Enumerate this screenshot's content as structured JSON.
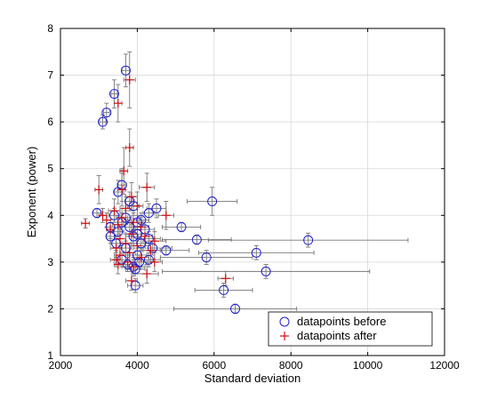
{
  "chart_data": {
    "type": "scatter",
    "xlabel": "Standard deviation",
    "ylabel": "Exponent (power)",
    "xlim": [
      2000,
      12000
    ],
    "ylim": [
      1,
      8
    ],
    "xticks": [
      "2000",
      "4000",
      "6000",
      "8000",
      "10000",
      "12000"
    ],
    "yticks": [
      "1",
      "2",
      "3",
      "4",
      "5",
      "6",
      "7",
      "8"
    ],
    "grid": true,
    "legend_position": "bottom-right",
    "colors": {
      "before": "#1f1fd0",
      "after": "#d01010",
      "errorbar": "#777777",
      "grid": "#d8d8d8"
    },
    "series": [
      {
        "name": "datapoints before",
        "marker": "circle",
        "points": [
          [
            3700,
            7.1,
            100,
            0.35
          ],
          [
            3400,
            6.6,
            80,
            0.3
          ],
          [
            3200,
            6.2,
            80,
            0.2
          ],
          [
            3100,
            6.0,
            80,
            0.15
          ],
          [
            3600,
            4.65,
            120,
            0.35
          ],
          [
            3500,
            4.5,
            100,
            0.25
          ],
          [
            3800,
            4.3,
            120,
            0.2
          ],
          [
            5950,
            4.3,
            650,
            0.3
          ],
          [
            4500,
            4.15,
            250,
            0.2
          ],
          [
            3900,
            4.2,
            150,
            0.2
          ],
          [
            4300,
            4.05,
            150,
            0.2
          ],
          [
            2950,
            4.05,
            100,
            0.1
          ],
          [
            3400,
            4.0,
            150,
            0.15
          ],
          [
            3700,
            3.95,
            150,
            0.15
          ],
          [
            4100,
            3.9,
            200,
            0.15
          ],
          [
            3600,
            3.85,
            100,
            0.2
          ],
          [
            4000,
            3.85,
            150,
            0.15
          ],
          [
            5150,
            3.75,
            500,
            0.1
          ],
          [
            3300,
            3.75,
            100,
            0.1
          ],
          [
            3800,
            3.75,
            200,
            0.15
          ],
          [
            4200,
            3.7,
            250,
            0.15
          ],
          [
            3500,
            3.65,
            150,
            0.15
          ],
          [
            4000,
            3.6,
            200,
            0.15
          ],
          [
            3300,
            3.55,
            100,
            0.15
          ],
          [
            3900,
            3.55,
            200,
            0.15
          ],
          [
            4300,
            3.5,
            300,
            0.15
          ],
          [
            5550,
            3.48,
            900,
            0.1
          ],
          [
            8450,
            3.47,
            2600,
            0.15
          ],
          [
            3450,
            3.4,
            150,
            0.15
          ],
          [
            4100,
            3.4,
            200,
            0.15
          ],
          [
            4400,
            3.3,
            500,
            0.15
          ],
          [
            3700,
            3.3,
            150,
            0.15
          ],
          [
            4750,
            3.25,
            600,
            0.1
          ],
          [
            7100,
            3.2,
            1500,
            0.15
          ],
          [
            4000,
            3.15,
            250,
            0.15
          ],
          [
            5800,
            3.1,
            1200,
            0.15
          ],
          [
            3600,
            3.05,
            200,
            0.15
          ],
          [
            4300,
            3.05,
            300,
            0.15
          ],
          [
            3750,
            2.95,
            200,
            0.15
          ],
          [
            4050,
            3.0,
            300,
            0.15
          ],
          [
            3900,
            2.9,
            300,
            0.15
          ],
          [
            3950,
            2.85,
            250,
            0.1
          ],
          [
            7350,
            2.8,
            2700,
            0.15
          ],
          [
            3950,
            2.5,
            200,
            0.15
          ],
          [
            6250,
            2.4,
            750,
            0.15
          ],
          [
            6550,
            2.0,
            1600,
            0.1
          ]
        ]
      },
      {
        "name": "datapoints after",
        "marker": "plus",
        "points": [
          [
            3800,
            6.9,
            150,
            0.6
          ],
          [
            3500,
            6.4,
            100,
            0.4
          ],
          [
            3800,
            5.45,
            100,
            0.4
          ],
          [
            3650,
            4.95,
            100,
            0.5
          ],
          [
            4250,
            4.6,
            200,
            0.3
          ],
          [
            3600,
            4.55,
            100,
            0.35
          ],
          [
            3000,
            4.55,
            100,
            0.3
          ],
          [
            3850,
            4.4,
            150,
            0.3
          ],
          [
            4000,
            4.2,
            150,
            0.3
          ],
          [
            3700,
            4.15,
            150,
            0.25
          ],
          [
            3400,
            4.1,
            150,
            0.25
          ],
          [
            3100,
            4.0,
            100,
            0.15
          ],
          [
            2650,
            3.83,
            100,
            0.1
          ],
          [
            3200,
            3.9,
            100,
            0.15
          ],
          [
            4750,
            4.0,
            200,
            0.3
          ],
          [
            3600,
            3.95,
            150,
            0.2
          ],
          [
            3900,
            3.85,
            150,
            0.2
          ],
          [
            3500,
            3.8,
            150,
            0.2
          ],
          [
            4100,
            3.75,
            200,
            0.2
          ],
          [
            3300,
            3.7,
            100,
            0.2
          ],
          [
            3850,
            3.6,
            150,
            0.2
          ],
          [
            4200,
            3.55,
            200,
            0.2
          ],
          [
            3550,
            3.5,
            150,
            0.2
          ],
          [
            4450,
            3.45,
            300,
            0.2
          ],
          [
            3700,
            3.4,
            150,
            0.2
          ],
          [
            4000,
            3.35,
            200,
            0.2
          ],
          [
            3450,
            3.3,
            150,
            0.2
          ],
          [
            4350,
            3.25,
            250,
            0.2
          ],
          [
            3800,
            3.2,
            150,
            0.2
          ],
          [
            3550,
            3.15,
            150,
            0.2
          ],
          [
            4100,
            3.1,
            200,
            0.2
          ],
          [
            3450,
            3.05,
            150,
            0.15
          ],
          [
            3750,
            3.0,
            150,
            0.2
          ],
          [
            4450,
            3.0,
            200,
            0.2
          ],
          [
            3900,
            2.9,
            200,
            0.2
          ],
          [
            3500,
            2.95,
            100,
            0.2
          ],
          [
            4250,
            2.75,
            300,
            0.2
          ],
          [
            6300,
            2.65,
            200,
            0.15
          ],
          [
            3850,
            2.6,
            150,
            0.2
          ]
        ]
      }
    ]
  }
}
